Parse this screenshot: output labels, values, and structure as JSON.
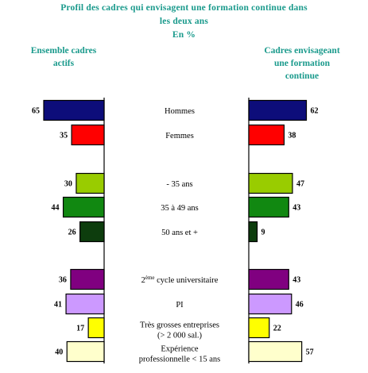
{
  "chart_data": {
    "type": "bar",
    "title_lines": [
      "Profil des cadres qui envisagent une formation continue dans",
      "les deux ans"
    ],
    "subtitle": "En %",
    "left_panel_title": [
      "Ensemble cadres",
      "actifs"
    ],
    "right_panel_title": [
      "Cadres envisageant",
      "une formation",
      "continue"
    ],
    "categories": [
      {
        "lines": [
          "Hommes"
        ],
        "color": "#0d0d7a"
      },
      {
        "lines": [
          "Femmes"
        ],
        "color": "#ff0000"
      },
      {
        "lines": [
          "- 35 ans"
        ],
        "color": "#99cc00"
      },
      {
        "lines": [
          "35 à 49 ans"
        ],
        "color": "#118811"
      },
      {
        "lines": [
          "50 ans et +"
        ],
        "color": "#0d3d0d"
      },
      {
        "lines": [
          "2ème cycle universitaire"
        ],
        "color": "#800080"
      },
      {
        "lines": [
          "PI"
        ],
        "color": "#cc99ff"
      },
      {
        "lines": [
          "Très grosses entreprises",
          "(> 2 000 sal.)"
        ],
        "color": "#ffff00"
      },
      {
        "lines": [
          "Expérience",
          "professionnelle < 15 ans"
        ],
        "color": "#ffffcc"
      }
    ],
    "series": [
      {
        "values": [
          65,
          35,
          30,
          44,
          26,
          36,
          41,
          17,
          40
        ]
      },
      {
        "values": [
          62,
          38,
          47,
          43,
          9,
          43,
          46,
          22,
          57
        ]
      }
    ]
  }
}
